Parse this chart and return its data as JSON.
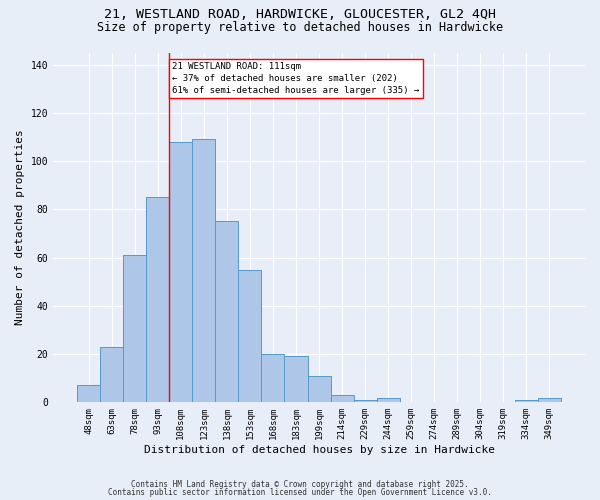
{
  "title_line1": "21, WESTLAND ROAD, HARDWICKE, GLOUCESTER, GL2 4QH",
  "title_line2": "Size of property relative to detached houses in Hardwicke",
  "xlabel": "Distribution of detached houses by size in Hardwicke",
  "ylabel": "Number of detached properties",
  "categories": [
    "48sqm",
    "63sqm",
    "78sqm",
    "93sqm",
    "108sqm",
    "123sqm",
    "138sqm",
    "153sqm",
    "168sqm",
    "183sqm",
    "199sqm",
    "214sqm",
    "229sqm",
    "244sqm",
    "259sqm",
    "274sqm",
    "289sqm",
    "304sqm",
    "319sqm",
    "334sqm",
    "349sqm"
  ],
  "values": [
    7,
    23,
    61,
    85,
    108,
    109,
    75,
    55,
    20,
    19,
    11,
    3,
    1,
    2,
    0,
    0,
    0,
    0,
    0,
    1,
    2
  ],
  "bar_color": "#aec6e8",
  "bar_edge_color": "#5599cc",
  "background_color": "#e8eef8",
  "grid_color": "#ffffff",
  "ylim": [
    0,
    145
  ],
  "yticks": [
    0,
    20,
    40,
    60,
    80,
    100,
    120,
    140
  ],
  "annotation_box_text": "21 WESTLAND ROAD: 111sqm\n← 37% of detached houses are smaller (202)\n61% of semi-detached houses are larger (335) →",
  "vline_index": 4,
  "footer_line1": "Contains HM Land Registry data © Crown copyright and database right 2025.",
  "footer_line2": "Contains public sector information licensed under the Open Government Licence v3.0.",
  "title_fontsize": 9.5,
  "subtitle_fontsize": 8.5,
  "axis_label_fontsize": 8,
  "tick_fontsize": 6.5,
  "annotation_fontsize": 6.5,
  "footer_fontsize": 5.5,
  "ylabel_fontsize": 8
}
